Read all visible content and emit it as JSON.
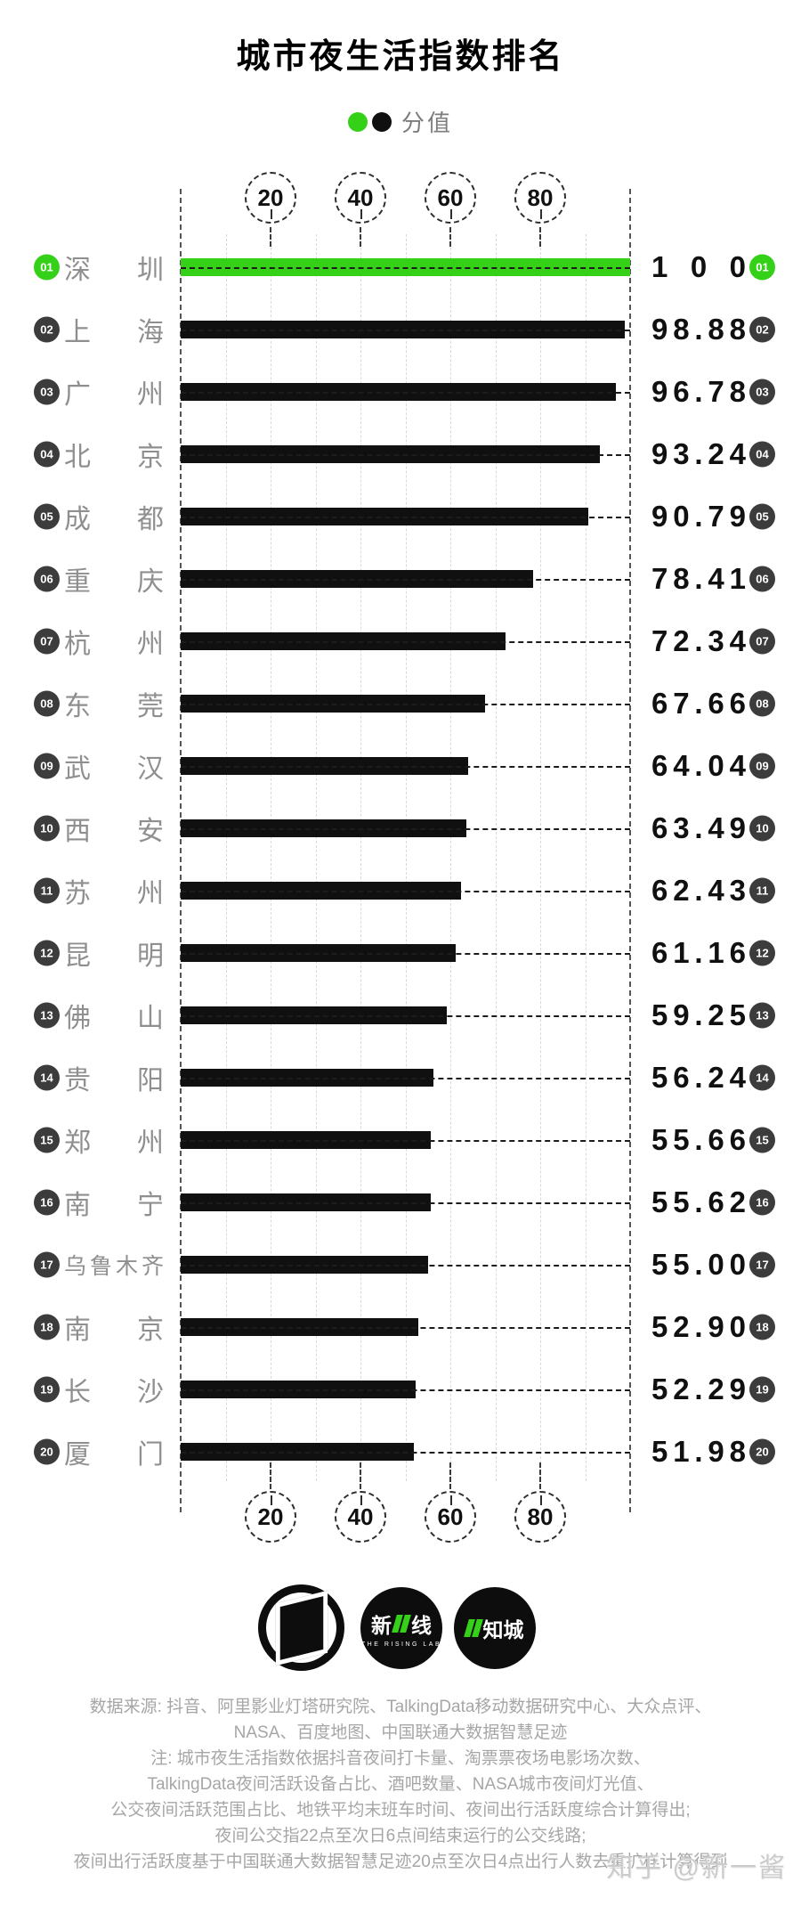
{
  "title": "城市夜生活指数排名",
  "chart_data": {
    "type": "bar",
    "orientation": "horizontal",
    "title": "城市夜生活指数排名",
    "legend_label": "分值",
    "xlim": [
      0,
      100
    ],
    "ticks": [
      20,
      40,
      60,
      80
    ],
    "grid": "vertical dashed every 10",
    "bar_color": "#101010",
    "highlight_color": "#34d118",
    "rows": [
      {
        "rank": "01",
        "city": "深圳",
        "value": 100,
        "value_label": "100",
        "highlight": true
      },
      {
        "rank": "02",
        "city": "上海",
        "value": 98.88,
        "value_label": "98.88",
        "highlight": false
      },
      {
        "rank": "03",
        "city": "广州",
        "value": 96.78,
        "value_label": "96.78",
        "highlight": false
      },
      {
        "rank": "04",
        "city": "北京",
        "value": 93.24,
        "value_label": "93.24",
        "highlight": false
      },
      {
        "rank": "05",
        "city": "成都",
        "value": 90.79,
        "value_label": "90.79",
        "highlight": false
      },
      {
        "rank": "06",
        "city": "重庆",
        "value": 78.41,
        "value_label": "78.41",
        "highlight": false
      },
      {
        "rank": "07",
        "city": "杭州",
        "value": 72.34,
        "value_label": "72.34",
        "highlight": false
      },
      {
        "rank": "08",
        "city": "东莞",
        "value": 67.66,
        "value_label": "67.66",
        "highlight": false
      },
      {
        "rank": "09",
        "city": "武汉",
        "value": 64.04,
        "value_label": "64.04",
        "highlight": false
      },
      {
        "rank": "10",
        "city": "西安",
        "value": 63.49,
        "value_label": "63.49",
        "highlight": false
      },
      {
        "rank": "11",
        "city": "苏州",
        "value": 62.43,
        "value_label": "62.43",
        "highlight": false
      },
      {
        "rank": "12",
        "city": "昆明",
        "value": 61.16,
        "value_label": "61.16",
        "highlight": false
      },
      {
        "rank": "13",
        "city": "佛山",
        "value": 59.25,
        "value_label": "59.25",
        "highlight": false
      },
      {
        "rank": "14",
        "city": "贵阳",
        "value": 56.24,
        "value_label": "56.24",
        "highlight": false
      },
      {
        "rank": "15",
        "city": "郑州",
        "value": 55.66,
        "value_label": "55.66",
        "highlight": false
      },
      {
        "rank": "16",
        "city": "南宁",
        "value": 55.62,
        "value_label": "55.62",
        "highlight": false
      },
      {
        "rank": "17",
        "city": "乌鲁木齐",
        "value": 55.0,
        "value_label": "55.00",
        "highlight": false
      },
      {
        "rank": "18",
        "city": "南京",
        "value": 52.9,
        "value_label": "52.90",
        "highlight": false
      },
      {
        "rank": "19",
        "city": "长沙",
        "value": 52.29,
        "value_label": "52.29",
        "highlight": false
      },
      {
        "rank": "20",
        "city": "厦门",
        "value": 51.98,
        "value_label": "51.98",
        "highlight": false
      }
    ]
  },
  "logos": {
    "rising": {
      "left": "新",
      "right": "线",
      "sub": "THE RISING LAB"
    },
    "zhicheng": {
      "label": "知城"
    }
  },
  "footer": {
    "lines": [
      "数据来源: 抖音、阿里影业灯塔研究院、TalkingData移动数据研究中心、大众点评、",
      "NASA、百度地图、中国联通大数据智慧足迹",
      "注: 城市夜生活指数依据抖音夜间打卡量、淘票票夜场电影场次数、",
      "TalkingData夜间活跃设备占比、酒吧数量、NASA城市夜间灯光值、",
      "公交夜间活跃范围占比、地铁平均末班车时间、夜间出行活跃度综合计算得出;",
      "夜间公交指22点至次日6点间结束运行的公交线路;",
      "夜间出行活跃度基于中国联通大数据智慧足迹20点至次日4点出行人数去重扩样计算得到"
    ]
  },
  "watermark": "知乎 @新一酱"
}
